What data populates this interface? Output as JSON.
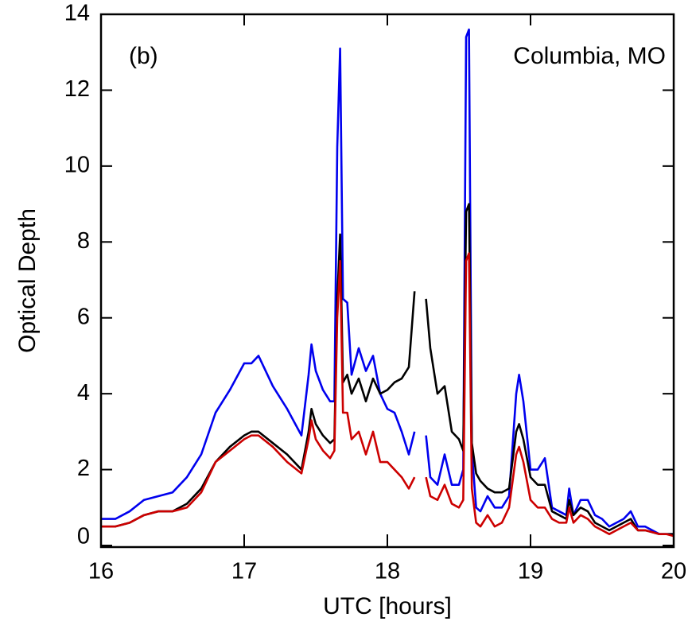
{
  "chart_data": {
    "type": "line",
    "xlabel": "UTC [hours]",
    "ylabel": "Optical Depth",
    "annotations": [
      "(b)",
      "Columbia, MO"
    ],
    "xlim": [
      16,
      20
    ],
    "xticks": [
      16,
      17,
      18,
      19,
      20
    ],
    "ylim": [
      0,
      14
    ],
    "yticks": [
      0,
      2,
      4,
      6,
      8,
      10,
      12,
      14
    ],
    "x": [
      16.0,
      16.1,
      16.2,
      16.3,
      16.4,
      16.5,
      16.6,
      16.7,
      16.8,
      16.9,
      17.0,
      17.05,
      17.1,
      17.2,
      17.3,
      17.4,
      17.45,
      17.47,
      17.5,
      17.55,
      17.6,
      17.63,
      17.65,
      17.67,
      17.69,
      17.72,
      17.75,
      17.8,
      17.85,
      17.9,
      17.95,
      18.0,
      18.05,
      18.1,
      18.15,
      18.19,
      18.23,
      18.27,
      18.3,
      18.35,
      18.4,
      18.45,
      18.5,
      18.53,
      18.55,
      18.57,
      18.59,
      18.62,
      18.65,
      18.7,
      18.75,
      18.8,
      18.85,
      18.9,
      18.92,
      18.95,
      19.0,
      19.05,
      19.1,
      19.15,
      19.2,
      19.25,
      19.27,
      19.3,
      19.35,
      19.4,
      19.45,
      19.5,
      19.55,
      19.6,
      19.65,
      19.7,
      19.75,
      19.8,
      19.85,
      19.9,
      19.95,
      20.0
    ],
    "series": [
      {
        "color": "#0000ee",
        "values": [
          0.7,
          0.7,
          0.9,
          1.2,
          1.3,
          1.4,
          1.8,
          2.4,
          3.5,
          4.1,
          4.8,
          4.8,
          5.0,
          4.2,
          3.6,
          2.9,
          4.5,
          5.3,
          4.6,
          4.1,
          3.8,
          3.8,
          10.5,
          13.1,
          6.5,
          6.4,
          4.5,
          5.2,
          4.6,
          5.0,
          4.0,
          3.6,
          3.5,
          3.0,
          2.4,
          3.0,
          null,
          2.9,
          1.8,
          1.6,
          2.4,
          1.6,
          1.6,
          2.0,
          13.4,
          13.6,
          2.5,
          1.0,
          0.9,
          1.3,
          1.0,
          1.0,
          1.3,
          4.0,
          4.5,
          3.8,
          2.0,
          2.0,
          2.3,
          1.0,
          0.9,
          0.8,
          1.5,
          0.8,
          1.2,
          1.2,
          0.8,
          0.7,
          0.5,
          0.6,
          0.7,
          0.9,
          0.5,
          0.5,
          0.4,
          0.3,
          0.3,
          0.3
        ]
      },
      {
        "color": "#000000",
        "values": [
          0.5,
          0.5,
          0.6,
          0.8,
          0.9,
          0.9,
          1.1,
          1.5,
          2.2,
          2.6,
          2.9,
          3.0,
          3.0,
          2.7,
          2.4,
          2.0,
          3.0,
          3.6,
          3.2,
          2.9,
          2.7,
          2.8,
          6.5,
          8.2,
          4.3,
          4.5,
          4.0,
          4.4,
          3.8,
          4.4,
          4.0,
          4.1,
          4.3,
          4.4,
          4.7,
          6.7,
          null,
          6.5,
          5.2,
          4.0,
          4.2,
          3.0,
          2.8,
          2.5,
          8.8,
          9.0,
          2.7,
          1.9,
          1.7,
          1.5,
          1.4,
          1.4,
          1.5,
          3.0,
          3.2,
          2.8,
          1.8,
          1.6,
          1.6,
          0.9,
          0.8,
          0.7,
          1.2,
          0.8,
          1.0,
          0.9,
          0.6,
          0.5,
          0.4,
          0.5,
          0.6,
          0.7,
          0.4,
          0.4,
          0.35,
          0.3,
          0.3,
          0.3
        ]
      },
      {
        "color": "#cc0000",
        "values": [
          0.5,
          0.5,
          0.6,
          0.8,
          0.9,
          0.9,
          1.0,
          1.4,
          2.2,
          2.5,
          2.8,
          2.9,
          2.9,
          2.6,
          2.2,
          1.9,
          2.8,
          3.3,
          2.8,
          2.5,
          2.3,
          2.5,
          6.0,
          7.5,
          3.5,
          3.5,
          2.8,
          3.0,
          2.4,
          3.0,
          2.2,
          2.2,
          2.0,
          1.8,
          1.5,
          1.8,
          null,
          1.8,
          1.3,
          1.2,
          1.6,
          1.1,
          1.0,
          1.2,
          7.5,
          7.7,
          1.5,
          0.6,
          0.5,
          0.8,
          0.5,
          0.6,
          1.0,
          2.4,
          2.6,
          2.2,
          1.2,
          1.0,
          1.0,
          0.7,
          0.6,
          0.6,
          1.0,
          0.6,
          0.8,
          0.7,
          0.5,
          0.4,
          0.3,
          0.4,
          0.5,
          0.6,
          0.4,
          0.4,
          0.35,
          0.3,
          0.3,
          0.25
        ]
      }
    ]
  }
}
